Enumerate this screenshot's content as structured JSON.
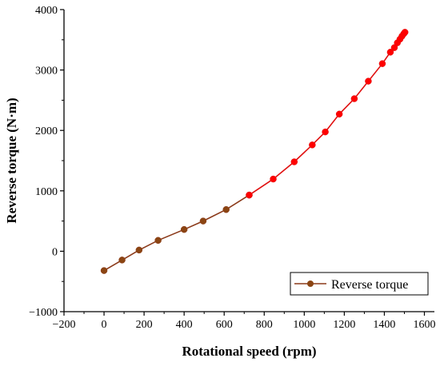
{
  "chart_data": {
    "type": "line",
    "xlabel": "Rotational speed (rpm)",
    "ylabel": "Reverse torque (N·m)",
    "xlim": [
      -200,
      1650
    ],
    "ylim": [
      -1000,
      4000
    ],
    "xticks": [
      -200,
      0,
      200,
      400,
      600,
      800,
      1000,
      1200,
      1400,
      1600
    ],
    "yticks": [
      -1000,
      0,
      1000,
      2000,
      3000,
      4000
    ],
    "xtick_labels": [
      "−200",
      "0",
      "200",
      "400",
      "600",
      "800",
      "1000",
      "1200",
      "1400",
      "1600"
    ],
    "ytick_labels": [
      "−1000",
      "0",
      "1000",
      "2000",
      "3000",
      "4000"
    ],
    "legend_position": "bottom-right",
    "grid": false,
    "series": [
      {
        "name": "Reverse torque",
        "line_color": "#8b3a1a",
        "marker_color": "#8b4513",
        "x": [
          0,
          90,
          175,
          270,
          400,
          495,
          610,
          725
        ],
        "y": [
          -320,
          -145,
          20,
          180,
          360,
          500,
          690,
          930
        ]
      },
      {
        "name": "",
        "line_color": "#e01010",
        "marker_color": "#ff0000",
        "x": [
          725,
          845,
          950,
          1040,
          1105,
          1175,
          1250,
          1320,
          1390,
          1430,
          1450,
          1465,
          1478,
          1488,
          1497,
          1503
        ],
        "y": [
          930,
          1195,
          1480,
          1760,
          1975,
          2270,
          2525,
          2815,
          3105,
          3295,
          3370,
          3450,
          3510,
          3560,
          3600,
          3625
        ]
      }
    ]
  }
}
